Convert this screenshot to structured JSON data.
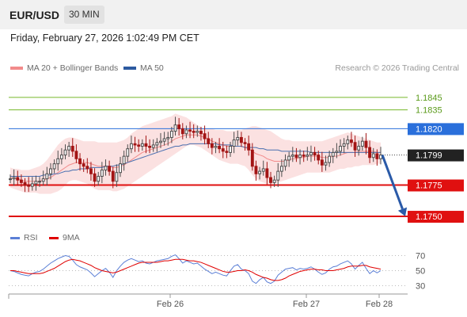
{
  "header": {
    "symbol": "EUR/USD",
    "timeframe": "30 MIN"
  },
  "timestamp": "Friday, February 27, 2026 1:02:49 PM CET",
  "legend": {
    "ma20_label": "MA 20 + Bollinger Bands",
    "ma20_color": "#f28b8b",
    "ma50_label": "MA 50",
    "ma50_color": "#2c5aa0",
    "source": "Research © 2026 Trading Central"
  },
  "rsi_legend": {
    "rsi_label": "RSI",
    "rsi_color": "#5b7fd6",
    "ma_label": "9MA",
    "ma_color": "#e00000"
  },
  "chart_data": [
    {
      "type": "candlestick",
      "ylim": [
        1.1738,
        1.1862
      ],
      "levels": [
        {
          "value": 1.1845,
          "label": "1.1845",
          "color": "#76b82a",
          "kind": "resistance"
        },
        {
          "value": 1.1835,
          "label": "1.1835",
          "color": "#76b82a",
          "kind": "resistance"
        },
        {
          "value": 1.182,
          "label": "1.1820",
          "color": "#2a6fdb",
          "kind": "pivot"
        },
        {
          "value": 1.1799,
          "label": "1.1799",
          "color": "#222222",
          "kind": "last"
        },
        {
          "value": 1.1775,
          "label": "1.1775",
          "color": "#e01010",
          "kind": "support"
        },
        {
          "value": 1.175,
          "label": "1.1750",
          "color": "#e01010",
          "kind": "support"
        }
      ],
      "x_ticks": [
        "Feb 26",
        "Feb 27",
        "Feb 28"
      ],
      "closes": [
        1.178,
        1.1781,
        1.1779,
        1.1777,
        1.1775,
        1.1774,
        1.1776,
        1.1778,
        1.1778,
        1.178,
        1.1784,
        1.1788,
        1.1792,
        1.1796,
        1.1799,
        1.1803,
        1.1806,
        1.1802,
        1.1796,
        1.1792,
        1.179,
        1.1788,
        1.1784,
        1.1778,
        1.1782,
        1.1787,
        1.179,
        1.1786,
        1.1778,
        1.1785,
        1.1792,
        1.1798,
        1.1804,
        1.1808,
        1.1807,
        1.1806,
        1.1808,
        1.1806,
        1.1805,
        1.1807,
        1.1809,
        1.181,
        1.1812,
        1.1813,
        1.1818,
        1.1823,
        1.182,
        1.1816,
        1.1819,
        1.1818,
        1.1817,
        1.1818,
        1.1816,
        1.1812,
        1.1808,
        1.1805,
        1.1806,
        1.1804,
        1.1802,
        1.1801,
        1.1806,
        1.1811,
        1.1813,
        1.1809,
        1.1808,
        1.1803,
        1.179,
        1.1784,
        1.1786,
        1.1788,
        1.1781,
        1.1777,
        1.1779,
        1.1786,
        1.179,
        1.1795,
        1.1798,
        1.1799,
        1.1797,
        1.1799,
        1.1798,
        1.1799,
        1.1801,
        1.1799,
        1.1795,
        1.1791,
        1.1793,
        1.1798,
        1.1801,
        1.1802,
        1.1806,
        1.1808,
        1.1811,
        1.1809,
        1.1803,
        1.1806,
        1.181,
        1.1805,
        1.1797,
        1.18,
        1.1796,
        1.1799
      ],
      "ma20": [
        1.1781,
        1.178,
        1.178,
        1.1779,
        1.1778,
        1.1778,
        1.1778,
        1.1778,
        1.1778,
        1.1779,
        1.178,
        1.1781,
        1.1783,
        1.1785,
        1.1787,
        1.1789,
        1.1791,
        1.1792,
        1.1793,
        1.1793,
        1.1793,
        1.1793,
        1.1792,
        1.1791,
        1.179,
        1.179,
        1.179,
        1.179,
        1.1789,
        1.1789,
        1.179,
        1.1791,
        1.1793,
        1.1795,
        1.1797,
        1.1799,
        1.1801,
        1.1802,
        1.1803,
        1.1804,
        1.1805,
        1.1806,
        1.1807,
        1.1808,
        1.181,
        1.1812,
        1.1813,
        1.1814,
        1.1815,
        1.1815,
        1.1815,
        1.1815,
        1.1814,
        1.1813,
        1.1812,
        1.181,
        1.1809,
        1.1808,
        1.1807,
        1.1806,
        1.1806,
        1.1806,
        1.1806,
        1.1806,
        1.1805,
        1.1804,
        1.1802,
        1.18,
        1.1799,
        1.1798,
        1.1796,
        1.1795,
        1.1794,
        1.1794,
        1.1794,
        1.1794,
        1.1795,
        1.1796,
        1.1796,
        1.1797,
        1.1797,
        1.1798,
        1.1798,
        1.1798,
        1.1798,
        1.1797,
        1.1797,
        1.1797,
        1.1798,
        1.1798,
        1.1799,
        1.18,
        1.1801,
        1.1801,
        1.1801,
        1.1802,
        1.1802,
        1.1802,
        1.1802,
        1.1802,
        1.1801,
        1.1801
      ],
      "ma50": [
        1.1782,
        1.1782,
        1.1782,
        1.1782,
        1.1782,
        1.1782,
        1.1782,
        1.1782,
        1.1782,
        1.1783,
        1.1783,
        1.1783,
        1.1784,
        1.1784,
        1.1785,
        1.1786,
        1.1786,
        1.1787,
        1.1787,
        1.1788,
        1.1788,
        1.1788,
        1.1789,
        1.1789,
        1.1789,
        1.1789,
        1.179,
        1.179,
        1.179,
        1.1791,
        1.1791,
        1.1792,
        1.1793,
        1.1794,
        1.1795,
        1.1796,
        1.1797,
        1.1798,
        1.1799,
        1.18,
        1.1801,
        1.1802,
        1.1803,
        1.1804,
        1.1805,
        1.1806,
        1.1806,
        1.1807,
        1.1807,
        1.1808,
        1.1808,
        1.1808,
        1.1808,
        1.1808,
        1.1808,
        1.1808,
        1.1808,
        1.1807,
        1.1807,
        1.1807,
        1.1807,
        1.1806,
        1.1806,
        1.1806,
        1.1805,
        1.1805,
        1.1805,
        1.1805,
        1.1804,
        1.1804,
        1.1803,
        1.1803,
        1.1803,
        1.1803,
        1.1802,
        1.1802,
        1.1802,
        1.1802,
        1.1802,
        1.1802,
        1.1802,
        1.1802,
        1.1801,
        1.1801,
        1.1801,
        1.1801,
        1.1801,
        1.1801,
        1.1801,
        1.1801,
        1.1801,
        1.1801,
        1.1801,
        1.1801,
        1.1801,
        1.1801,
        1.1801,
        1.1801,
        1.1801,
        1.1801,
        1.1801,
        1.1801
      ],
      "bb_upper": [
        1.1789,
        1.1788,
        1.1788,
        1.1787,
        1.1787,
        1.1787,
        1.1788,
        1.1789,
        1.179,
        1.1792,
        1.1795,
        1.1799,
        1.1803,
        1.1807,
        1.181,
        1.1812,
        1.1813,
        1.1813,
        1.1812,
        1.1811,
        1.181,
        1.181,
        1.181,
        1.181,
        1.1809,
        1.1809,
        1.1809,
        1.1809,
        1.1809,
        1.1809,
        1.181,
        1.1811,
        1.1813,
        1.1816,
        1.1818,
        1.182,
        1.1822,
        1.1823,
        1.1824,
        1.1825,
        1.1826,
        1.1827,
        1.1828,
        1.1829,
        1.183,
        1.1832,
        1.1831,
        1.183,
        1.1829,
        1.1827,
        1.1825,
        1.1823,
        1.1821,
        1.182,
        1.182,
        1.182,
        1.1819,
        1.1819,
        1.1819,
        1.1818,
        1.1818,
        1.1818,
        1.1819,
        1.1819,
        1.182,
        1.1821,
        1.1822,
        1.1822,
        1.1821,
        1.182,
        1.1819,
        1.1818,
        1.1816,
        1.1814,
        1.1812,
        1.1811,
        1.1811,
        1.181,
        1.181,
        1.181,
        1.181,
        1.181,
        1.181,
        1.181,
        1.181,
        1.181,
        1.1811,
        1.1812,
        1.1813,
        1.1814,
        1.1815,
        1.1816,
        1.1817,
        1.1816,
        1.1815,
        1.1814,
        1.1813,
        1.1812,
        1.1811,
        1.181,
        1.1809,
        1.1809
      ],
      "bb_lower": [
        1.1773,
        1.1772,
        1.1771,
        1.177,
        1.1769,
        1.1769,
        1.1769,
        1.1769,
        1.1768,
        1.1768,
        1.1768,
        1.1768,
        1.1769,
        1.177,
        1.1772,
        1.1775,
        1.1778,
        1.1779,
        1.1779,
        1.1778,
        1.1777,
        1.1776,
        1.1774,
        1.1772,
        1.1771,
        1.1771,
        1.1771,
        1.1771,
        1.177,
        1.177,
        1.1771,
        1.1772,
        1.1774,
        1.1776,
        1.1778,
        1.178,
        1.1782,
        1.1784,
        1.1786,
        1.1788,
        1.179,
        1.1792,
        1.1794,
        1.1796,
        1.1798,
        1.18,
        1.1802,
        1.1804,
        1.1806,
        1.1807,
        1.1807,
        1.1806,
        1.1805,
        1.1803,
        1.1801,
        1.1799,
        1.1797,
        1.1795,
        1.1794,
        1.1793,
        1.1792,
        1.1792,
        1.1792,
        1.1791,
        1.179,
        1.1787,
        1.1783,
        1.178,
        1.1778,
        1.1777,
        1.1776,
        1.1776,
        1.1776,
        1.1777,
        1.1778,
        1.1779,
        1.178,
        1.1781,
        1.1782,
        1.1783,
        1.1784,
        1.1785,
        1.1785,
        1.1785,
        1.1785,
        1.1785,
        1.1785,
        1.1785,
        1.1786,
        1.1787,
        1.1788,
        1.1788,
        1.1789,
        1.1789,
        1.179,
        1.179,
        1.1791,
        1.1791,
        1.1791,
        1.1791,
        1.1792,
        1.1792
      ],
      "forecast": {
        "from": 1.1799,
        "to": 1.175
      }
    },
    {
      "type": "line",
      "name": "RSI",
      "ylim": [
        20,
        80
      ],
      "y_ticks": [
        70,
        50,
        30
      ],
      "rsi": [
        50,
        49,
        47,
        45,
        44,
        43,
        46,
        48,
        49,
        52,
        56,
        60,
        63,
        66,
        68,
        70,
        69,
        64,
        58,
        55,
        53,
        51,
        47,
        42,
        46,
        50,
        53,
        48,
        41,
        50,
        56,
        61,
        64,
        66,
        64,
        62,
        63,
        60,
        59,
        61,
        63,
        64,
        65,
        66,
        69,
        71,
        66,
        60,
        63,
        61,
        59,
        60,
        56,
        52,
        49,
        46,
        48,
        46,
        44,
        43,
        50,
        56,
        58,
        52,
        50,
        46,
        36,
        33,
        38,
        41,
        35,
        33,
        36,
        44,
        48,
        52,
        53,
        54,
        51,
        53,
        52,
        53,
        55,
        52,
        48,
        45,
        47,
        52,
        55,
        56,
        59,
        61,
        63,
        59,
        52,
        57,
        61,
        53,
        46,
        50,
        47,
        50
      ],
      "rsi_ma": [
        50,
        50,
        49,
        48,
        47,
        46,
        46,
        46,
        46,
        47,
        49,
        51,
        53,
        56,
        59,
        62,
        64,
        65,
        64,
        63,
        61,
        59,
        57,
        54,
        52,
        50,
        49,
        48,
        47,
        48,
        50,
        52,
        54,
        56,
        58,
        60,
        61,
        61,
        61,
        61,
        61,
        62,
        63,
        63,
        64,
        65,
        65,
        65,
        64,
        63,
        63,
        62,
        61,
        59,
        57,
        55,
        53,
        51,
        49,
        48,
        48,
        49,
        50,
        50,
        51,
        50,
        48,
        45,
        43,
        41,
        40,
        38,
        37,
        37,
        38,
        40,
        43,
        45,
        47,
        49,
        50,
        51,
        52,
        52,
        51,
        51,
        50,
        50,
        50,
        51,
        52,
        53,
        55,
        56,
        56,
        56,
        57,
        57,
        55,
        54,
        53,
        52
      ]
    }
  ]
}
